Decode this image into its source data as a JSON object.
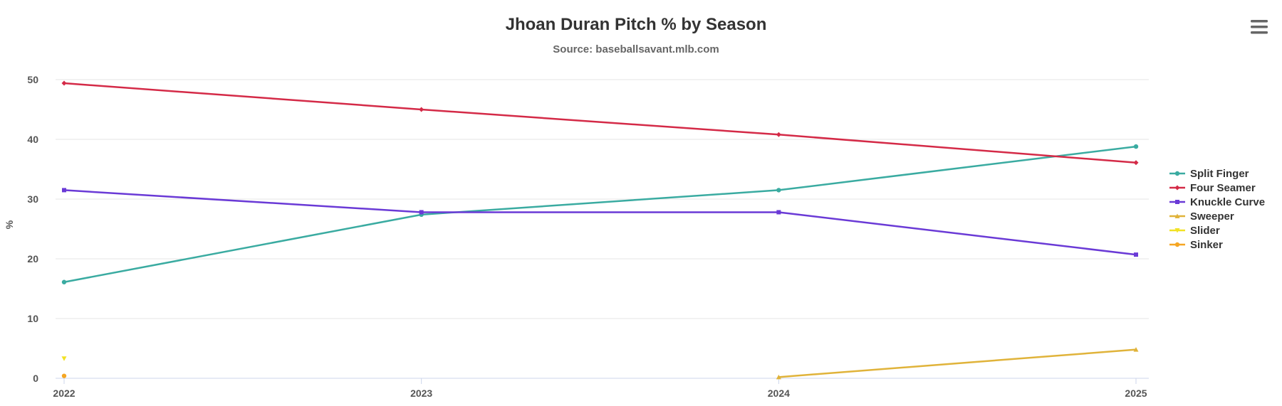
{
  "chart_data": {
    "type": "line",
    "title": "Jhoan Duran Pitch % by Season",
    "subtitle": "Source: baseballsavant.mlb.com",
    "xlabel": "",
    "ylabel": "%",
    "categories": [
      "2022",
      "2023",
      "2024",
      "2025"
    ],
    "ylim": [
      0,
      50
    ],
    "yticks": [
      0,
      10,
      20,
      30,
      40,
      50
    ],
    "grid": true,
    "legend_position": "right",
    "series": [
      {
        "name": "Split Finger",
        "color": "#3aaba1",
        "marker": "circle",
        "values": [
          16.1,
          27.4,
          31.5,
          38.8
        ]
      },
      {
        "name": "Four Seamer",
        "color": "#d42a47",
        "marker": "diamond",
        "values": [
          49.4,
          45.0,
          40.8,
          36.1
        ]
      },
      {
        "name": "Knuckle Curve",
        "color": "#6a3ad6",
        "marker": "square",
        "values": [
          31.5,
          27.8,
          27.8,
          20.7
        ]
      },
      {
        "name": "Sweeper",
        "color": "#e0b33a",
        "marker": "triangle",
        "values": [
          null,
          null,
          0.2,
          4.8
        ]
      },
      {
        "name": "Slider",
        "color": "#f2e224",
        "marker": "triangle-down",
        "values": [
          3.3,
          null,
          null,
          null
        ]
      },
      {
        "name": "Sinker",
        "color": "#f5a623",
        "marker": "circle",
        "values": [
          0.4,
          null,
          null,
          null
        ]
      }
    ]
  },
  "menu": {
    "icon": "hamburger-menu-icon"
  }
}
